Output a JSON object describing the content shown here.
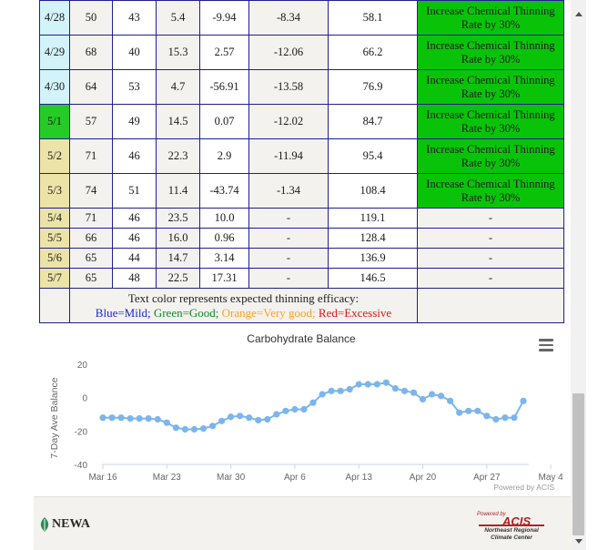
{
  "table": {
    "rows": [
      {
        "date": "4/28",
        "c1": "50",
        "c2": "43",
        "c3": "5.4",
        "c4": "-9.94",
        "c5": "-8.34",
        "c6": "58.1",
        "rec": "Increase Chemical Thinning Rate by 30%",
        "date_color": "#d3f3fb",
        "size": "tall"
      },
      {
        "date": "4/29",
        "c1": "68",
        "c2": "40",
        "c3": "15.3",
        "c4": "2.57",
        "c5": "-12.06",
        "c6": "66.2",
        "rec": "Increase Chemical Thinning Rate by 30%",
        "date_color": "#d3f3fb",
        "size": "tall"
      },
      {
        "date": "4/30",
        "c1": "64",
        "c2": "53",
        "c3": "4.7",
        "c4": "-56.91",
        "c5": "-13.58",
        "c6": "76.9",
        "rec": "Increase Chemical Thinning Rate by 30%",
        "date_color": "#d3f3fb",
        "size": "tall"
      },
      {
        "date": "5/1",
        "c1": "57",
        "c2": "49",
        "c3": "14.5",
        "c4": "0.07",
        "c5": "-12.02",
        "c6": "84.7",
        "rec": "Increase Chemical Thinning Rate by 30%",
        "date_color": "#25cc25",
        "size": "tall"
      },
      {
        "date": "5/2",
        "c1": "71",
        "c2": "46",
        "c3": "22.3",
        "c4": "2.9",
        "c5": "-11.94",
        "c6": "95.4",
        "rec": "Increase Chemical Thinning Rate by 30%",
        "date_color": "#ece3a8",
        "size": "tall"
      },
      {
        "date": "5/3",
        "c1": "74",
        "c2": "51",
        "c3": "11.4",
        "c4": "-43.74",
        "c5": "-1.34",
        "c6": "108.4",
        "rec": "Increase Chemical Thinning Rate by 30%",
        "date_color": "#ece3a8",
        "size": "tall"
      },
      {
        "date": "5/4",
        "c1": "71",
        "c2": "46",
        "c3": "23.5",
        "c4": "10.0",
        "c5": "-",
        "c6": "119.1",
        "rec": "-",
        "date_color": "#ece3a8",
        "size": "short"
      },
      {
        "date": "5/5",
        "c1": "66",
        "c2": "46",
        "c3": "16.0",
        "c4": "0.96",
        "c5": "-",
        "c6": "128.4",
        "rec": "-",
        "date_color": "#ece3a8",
        "size": "short"
      },
      {
        "date": "5/6",
        "c1": "65",
        "c2": "44",
        "c3": "14.7",
        "c4": "3.14",
        "c5": "-",
        "c6": "136.9",
        "rec": "-",
        "date_color": "#ece3a8",
        "size": "short"
      },
      {
        "date": "5/7",
        "c1": "65",
        "c2": "48",
        "c3": "22.5",
        "c4": "17.31",
        "c5": "-",
        "c6": "146.5",
        "rec": "-",
        "date_color": "#ece3a8",
        "size": "short"
      }
    ],
    "legend": {
      "line1": "Text color represents expected thinning efficacy:",
      "blue": "Blue=Mild;",
      "green": "Green=Good;",
      "orange": "Orange=Very good;",
      "red": "Red=Excessive",
      "colors": {
        "blue": "#1d26d1",
        "green": "#0f8a2a",
        "orange": "#ff9f1a",
        "red": "#e3141b"
      }
    }
  },
  "chart_data": {
    "type": "line",
    "title": "Carbohydrate Balance",
    "ylabel": "7-Day Ave Balance",
    "xlabel": "",
    "ylim": [
      -40,
      20
    ],
    "yticks": [
      "20",
      "0",
      "-20",
      "-40"
    ],
    "yticks_values": [
      20,
      0,
      -20,
      -40
    ],
    "xticks": [
      "Mar 16",
      "Mar 23",
      "Mar 30",
      "Apr 6",
      "Apr 13",
      "Apr 20",
      "Apr 27",
      "May 4"
    ],
    "x_start_label": "Mar 16",
    "series": [
      {
        "color": "#7cb5ec",
        "values": [
          -12,
          -12,
          -12,
          -12.5,
          -12.5,
          -12.5,
          -13,
          -15,
          -18,
          -19,
          -19,
          -18.5,
          -17,
          -14,
          -11.5,
          -11,
          -12,
          -13.5,
          -13,
          -10,
          -8,
          -7,
          -7,
          -3,
          2,
          4,
          4,
          5,
          8,
          8,
          8,
          9,
          5.5,
          4,
          3,
          -1,
          2,
          1,
          -2,
          -9,
          -8,
          -8,
          -11,
          -13,
          -12,
          -12,
          -2
        ]
      }
    ],
    "credit": "Powered by ACIS",
    "grid": false
  },
  "footer": {
    "newa_label": "NEWA",
    "acis": {
      "powered": "Powered by",
      "name": "ACIS",
      "line1": "Northeast Regional",
      "line2": "Climate Center"
    }
  }
}
